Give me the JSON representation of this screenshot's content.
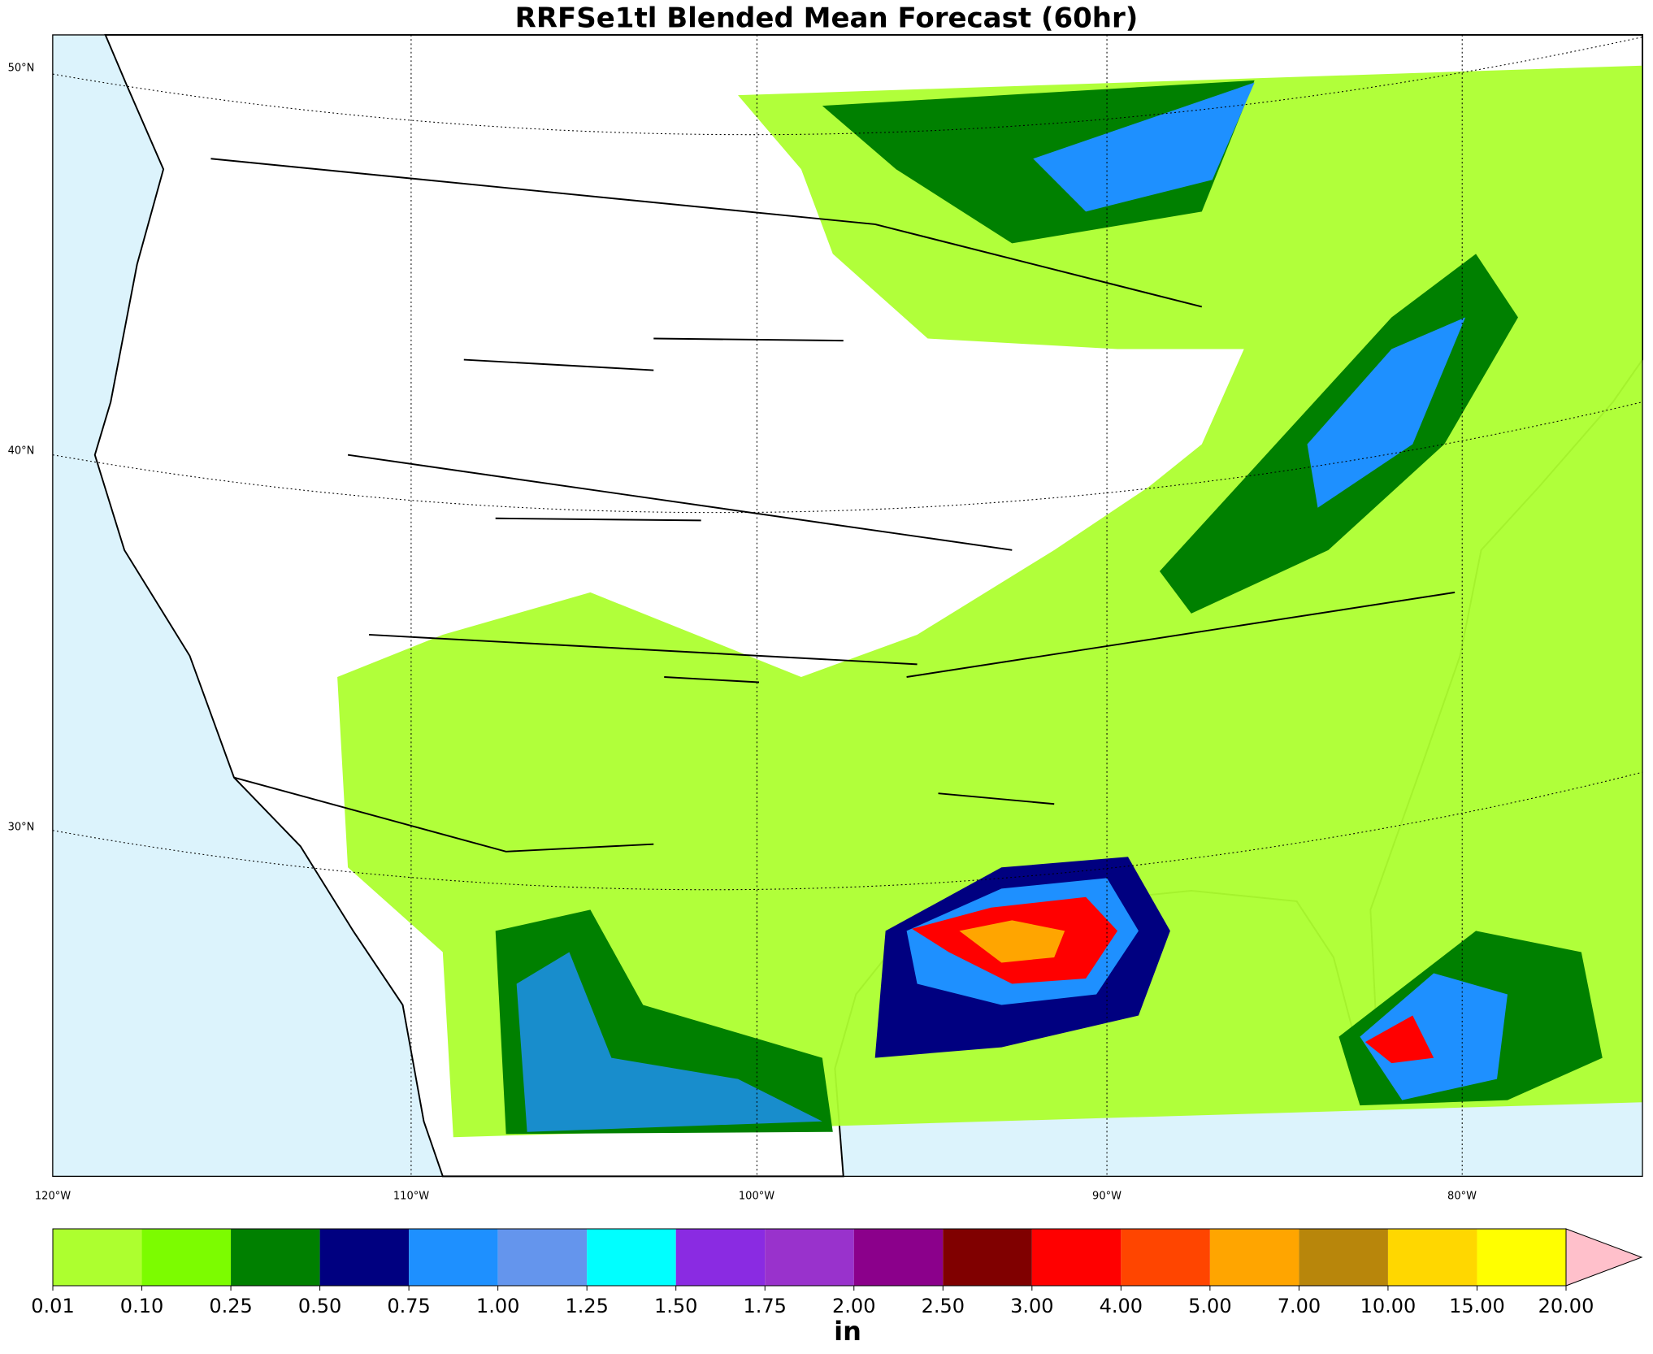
{
  "title": "RRFSe1tl Blended Mean Forecast (60hr)",
  "map": {
    "lat_labels": [
      "50°N",
      "40°N",
      "30°N"
    ],
    "lon_labels": [
      "120°W",
      "110°W",
      "100°W",
      "90°W",
      "80°W"
    ]
  },
  "colorbar": {
    "levels": [
      {
        "value": 0.01,
        "label": "0.01"
      },
      {
        "value": 0.1,
        "label": "0.10"
      },
      {
        "value": 0.25,
        "label": "0.25"
      },
      {
        "value": 0.5,
        "label": "0.50"
      },
      {
        "value": 0.75,
        "label": "0.75"
      },
      {
        "value": 1,
        "label": "1.00"
      },
      {
        "value": 1.25,
        "label": "1.25"
      },
      {
        "value": 1.5,
        "label": "1.50"
      },
      {
        "value": 1.75,
        "label": "1.75"
      },
      {
        "value": 2,
        "label": "2.00"
      },
      {
        "value": 2.5,
        "label": "2.50"
      },
      {
        "value": 3,
        "label": "3.00"
      },
      {
        "value": 4,
        "label": "4.00"
      },
      {
        "value": 5,
        "label": "5.00"
      },
      {
        "value": 7,
        "label": "7.00"
      },
      {
        "value": 10,
        "label": "10.00"
      },
      {
        "value": 15,
        "label": "15.00"
      },
      {
        "value": 20,
        "label": "20.00"
      }
    ],
    "colors": [
      "#adff2f",
      "#7cfc00",
      "#008000",
      "#000080",
      "#1e90ff",
      "#6495ed",
      "#00ffff",
      "#8a2be2",
      "#9932cc",
      "#8b008b",
      "#800000",
      "#ff0000",
      "#ff4500",
      "#ffa500",
      "#b8860b",
      "#ffd700",
      "#ffff00"
    ],
    "extend_color": "#ffc0cb",
    "label": "in"
  }
}
